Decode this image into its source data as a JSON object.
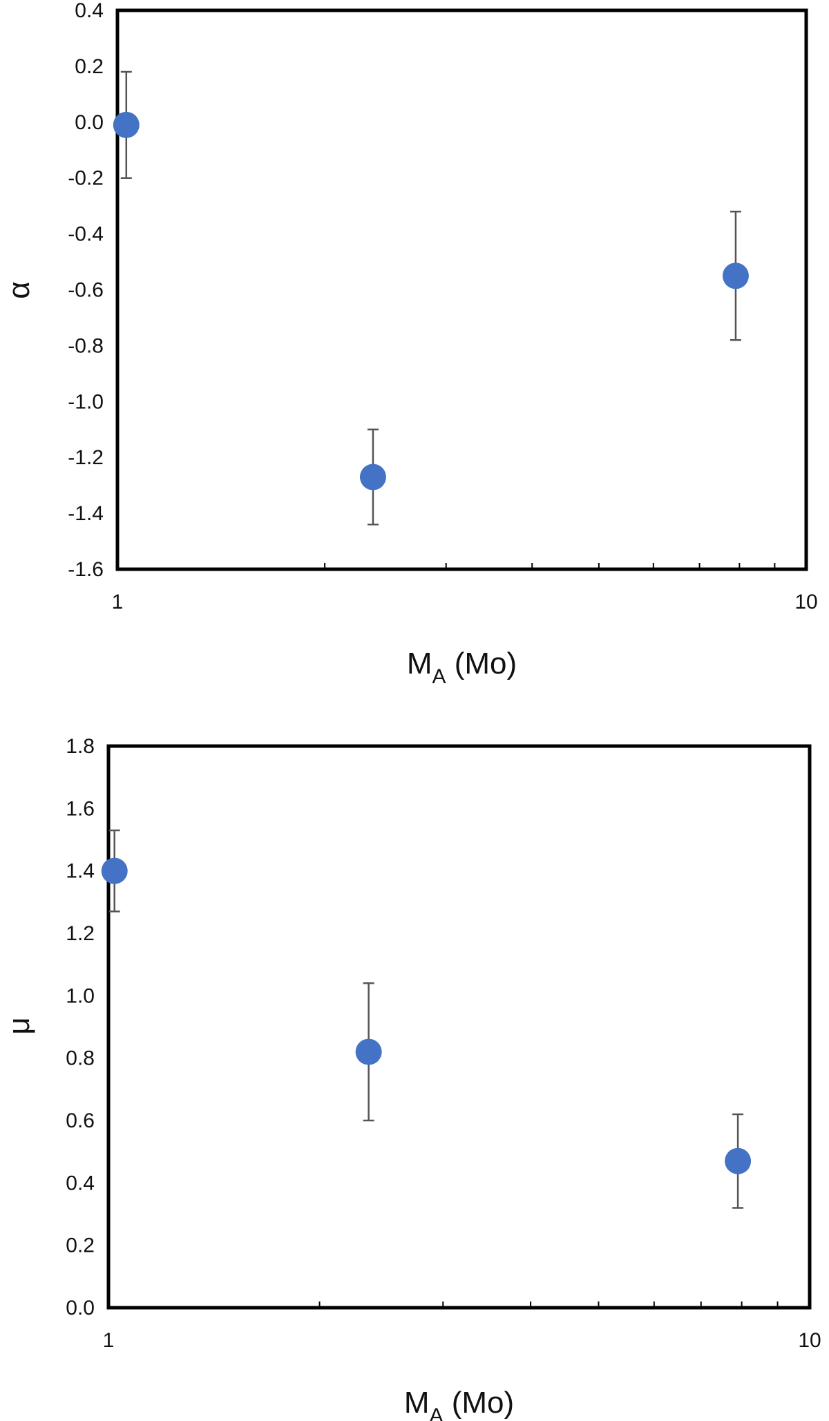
{
  "chart_data": [
    {
      "type": "scatter",
      "x_scale": "log",
      "xlim": [
        1,
        10
      ],
      "ylim": [
        -1.6,
        0.4
      ],
      "x_tick_labels": [
        "1",
        "10"
      ],
      "y_tick_labels": [
        "0.4",
        "0.2",
        "0.0",
        "-0.2",
        "-0.4",
        "-0.6",
        "-0.8",
        "-1.0",
        "-1.2",
        "-1.4",
        "-1.6"
      ],
      "xlabel": "M",
      "xlabel_subscript": "A",
      "xlabel_suffix": " (Mo)",
      "ylabel": "α",
      "marker_color": "#4472C4",
      "grid": false,
      "points": [
        {
          "x": 1.03,
          "y": -0.01,
          "err_low": -0.2,
          "err_high": 0.18
        },
        {
          "x": 2.35,
          "y": -1.27,
          "err_low": -1.44,
          "err_high": -1.1
        },
        {
          "x": 7.9,
          "y": -0.55,
          "err_low": -0.78,
          "err_high": -0.32
        }
      ]
    },
    {
      "type": "scatter",
      "x_scale": "log",
      "xlim": [
        1,
        10
      ],
      "ylim": [
        0.0,
        1.8
      ],
      "x_tick_labels": [
        "1",
        "10"
      ],
      "y_tick_labels": [
        "1.8",
        "1.6",
        "1.4",
        "1.2",
        "1.0",
        "0.8",
        "0.6",
        "0.4",
        "0.2",
        "0.0"
      ],
      "xlabel": "M",
      "xlabel_subscript": "A",
      "xlabel_suffix": " (Mo)",
      "ylabel": "μ",
      "marker_color": "#4472C4",
      "grid": false,
      "points": [
        {
          "x": 1.02,
          "y": 1.4,
          "err_low": 1.27,
          "err_high": 1.53
        },
        {
          "x": 2.35,
          "y": 0.82,
          "err_low": 0.6,
          "err_high": 1.04
        },
        {
          "x": 7.9,
          "y": 0.47,
          "err_low": 0.32,
          "err_high": 0.62
        }
      ]
    }
  ]
}
